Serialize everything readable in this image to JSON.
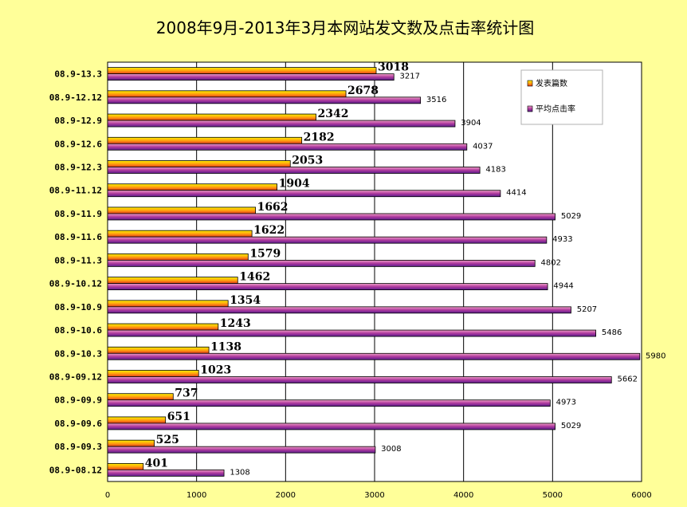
{
  "chart_data": {
    "type": "bar",
    "orientation": "horizontal",
    "title": "2008年9月-2013年3月本网站发文数及点击率统计图",
    "categories": [
      "08.9-13.3",
      "08.9-12.12",
      "08.9-12.9",
      "08.9-12.6",
      "08.9-12.3",
      "08.9-11.12",
      "08.9-11.9",
      "08.9-11.6",
      "08.9-11.3",
      "08.9-10.12",
      "08.9-10.9",
      "08.9-10.6",
      "08.9-10.3",
      "08.9-09.12",
      "08.9-09.9",
      "08.9-09.6",
      "08.9-09.3",
      "08.9-08.12"
    ],
    "series": [
      {
        "name": "发表篇数",
        "values": [
          3018,
          2678,
          2342,
          2182,
          2053,
          1904,
          1662,
          1622,
          1579,
          1462,
          1354,
          1243,
          1138,
          1023,
          737,
          651,
          525,
          401
        ]
      },
      {
        "name": "平均点击率",
        "values": [
          3217,
          3516,
          3904,
          4037,
          4183,
          4414,
          5029,
          4933,
          4802,
          4944,
          5207,
          5486,
          5980,
          5662,
          4973,
          5029,
          3008,
          1308
        ]
      }
    ],
    "xlim": [
      0,
      6000
    ],
    "xticks": [
      0,
      1000,
      2000,
      3000,
      4000,
      5000,
      6000
    ],
    "grid": true,
    "legend_position": "top-right",
    "colors": {
      "series1_dark": "#E23A1A",
      "series1_light": "#FFF200",
      "series2_dark": "#5A1E8C",
      "series2_light": "#F0A0C8",
      "background": "#FFFF99",
      "plot_bg": "#FFFFFF"
    }
  }
}
